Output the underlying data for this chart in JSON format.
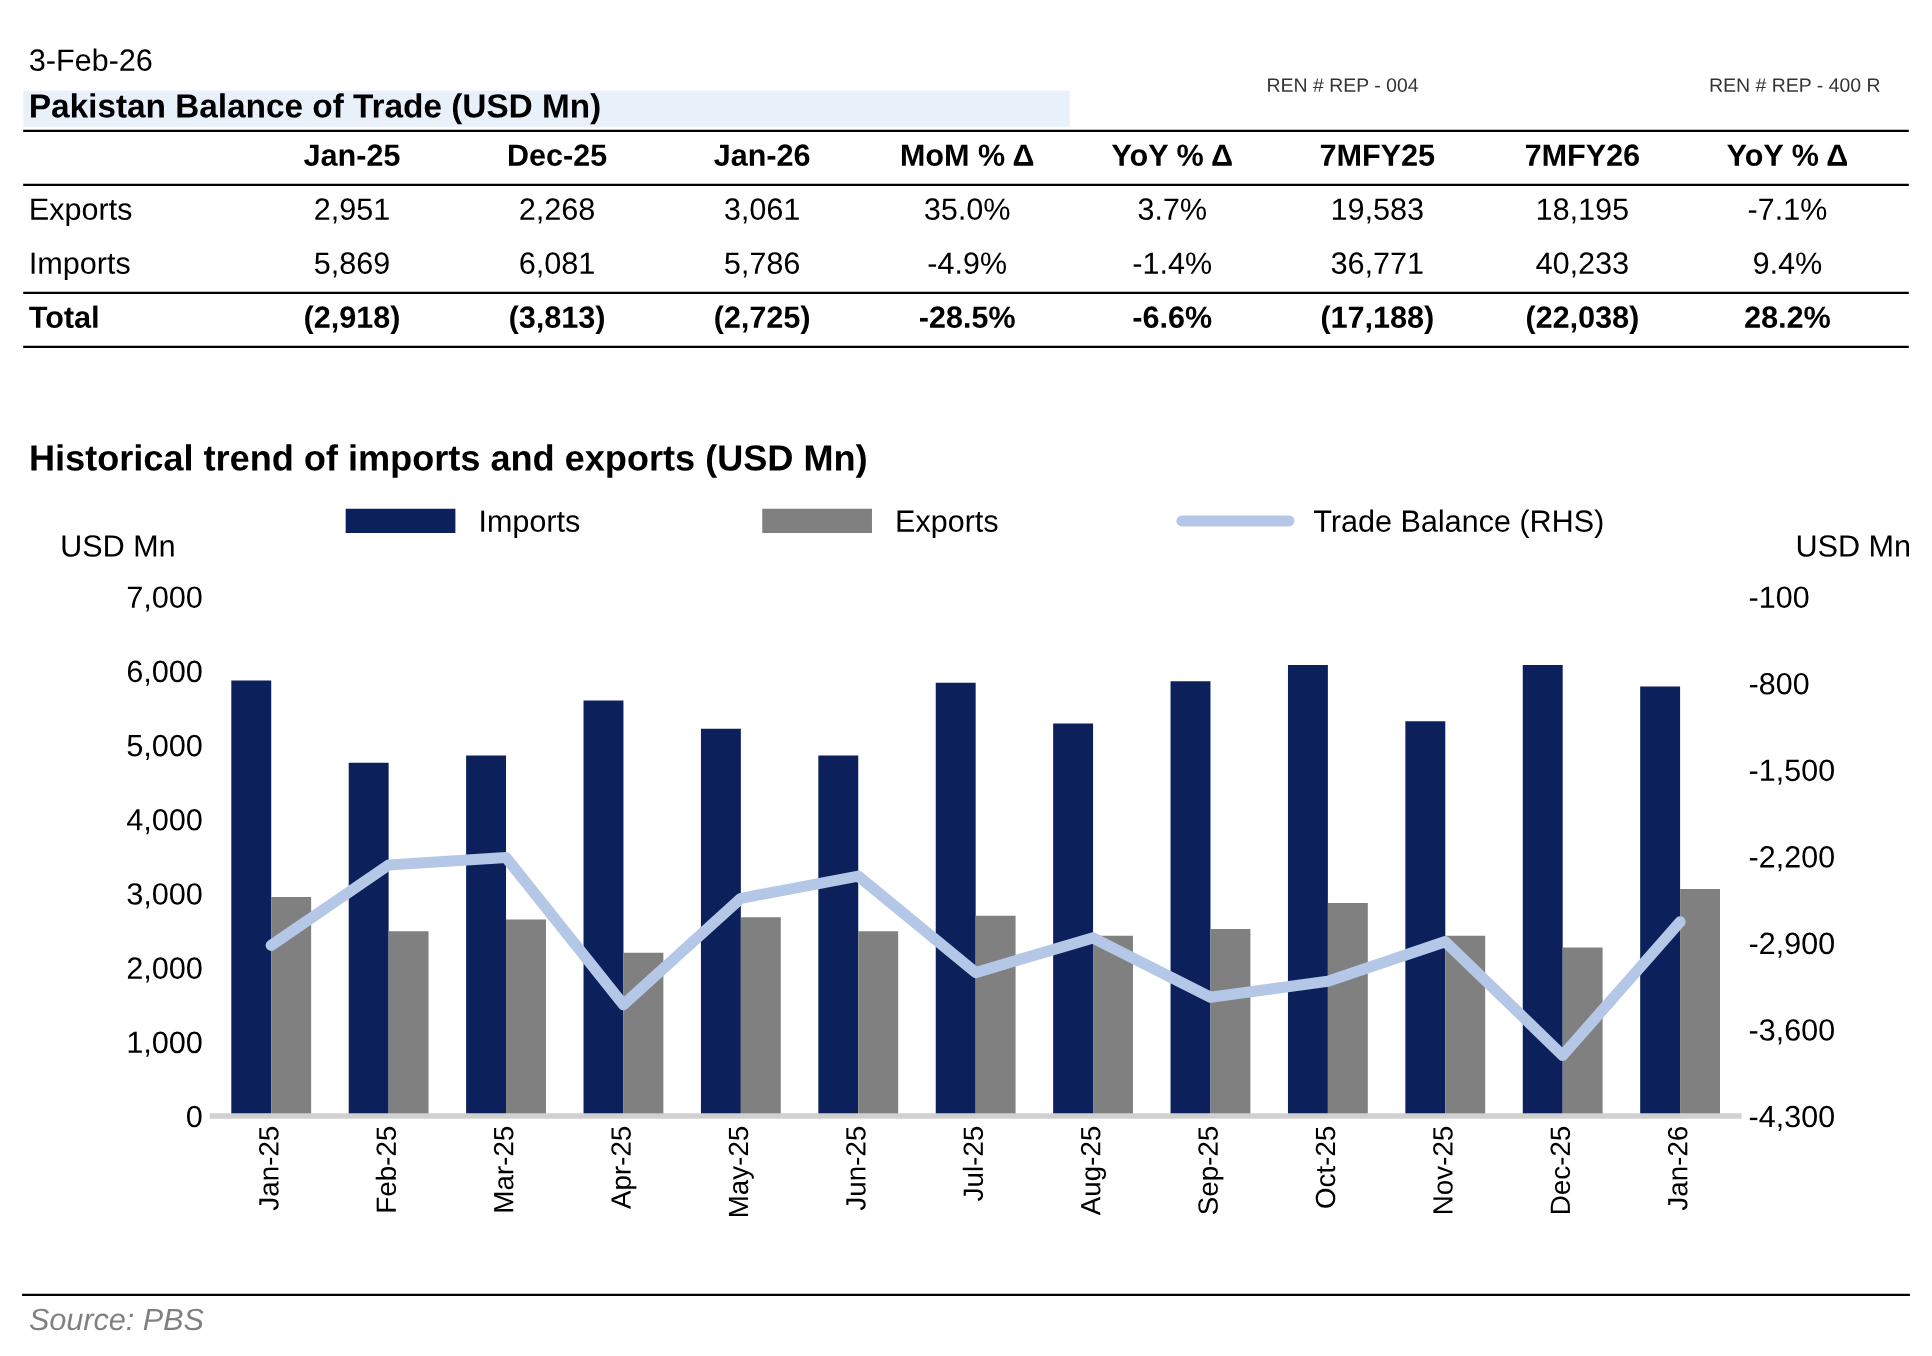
{
  "chart_data": [
    {
      "type": "other",
      "title": "Pakistan Balance of Trade (USD Mn)",
      "subtitle": "3-Feb-26",
      "categories": [
        "Jan-25",
        "Dec-25",
        "Jan-26",
        "MoM % Δ",
        "YoY % Δ",
        "7MFY25",
        "7MFY26",
        "YoY % Δ"
      ],
      "y_categories": [
        "Exports",
        "Imports",
        "Total"
      ],
      "cell_labels": [
        [
          "2,951",
          "2,268",
          "3,061",
          "35.0%",
          "3.7%",
          "19,583",
          "18,195",
          "-7.1%"
        ],
        [
          "5,869",
          "6,081",
          "5,786",
          "-4.9%",
          "-1.4%",
          "36,771",
          "40,233",
          "9.4%"
        ],
        [
          "(2,918)",
          "(3,813)",
          "(2,725)",
          "-28.5%",
          "-6.6%",
          "(17,188)",
          "(22,038)",
          "28.2%"
        ]
      ],
      "annotations": [
        "REN # REP - 004",
        "REN # REP - 400 R"
      ]
    },
    {
      "type": "bar",
      "title": "Historical trend of imports and exports (USD Mn)",
      "ylabel": "USD Mn",
      "y2label": "USD Mn",
      "categories": [
        "Jan-25",
        "Feb-25",
        "Mar-25",
        "Apr-25",
        "May-25",
        "Jun-25",
        "Jul-25",
        "Aug-25",
        "Sep-25",
        "Oct-25",
        "Nov-25",
        "Dec-25",
        "Jan-26"
      ],
      "series": [
        {
          "name": "Imports",
          "color": "#0c205c",
          "values": [
            5870,
            4760,
            4860,
            5600,
            5220,
            4860,
            5840,
            5290,
            5860,
            6080,
            5320,
            6080,
            5790
          ]
        },
        {
          "name": "Exports",
          "color": "#808080",
          "values": [
            2950,
            2490,
            2650,
            2200,
            2680,
            2490,
            2700,
            2430,
            2520,
            2870,
            2430,
            2270,
            3060
          ]
        },
        {
          "name": "Trade Balance (RHS)",
          "type": "line",
          "axis": "y2",
          "color": "#b4c7e7",
          "values": [
            -2920,
            -2270,
            -2210,
            -3400,
            -2540,
            -2360,
            -3140,
            -2860,
            -3340,
            -3210,
            -2890,
            -3810,
            -2730
          ]
        }
      ],
      "ylim": [
        0,
        7000
      ],
      "yticks": [
        {
          "value": 0,
          "label": "0"
        },
        {
          "value": 1000,
          "label": "1,000"
        },
        {
          "value": 2000,
          "label": "2,000"
        },
        {
          "value": 3000,
          "label": "3,000"
        },
        {
          "value": 4000,
          "label": "4,000"
        },
        {
          "value": 5000,
          "label": "5,000"
        },
        {
          "value": 6000,
          "label": "6,000"
        },
        {
          "value": 7000,
          "label": "7,000"
        }
      ],
      "y2lim": [
        -4300,
        -100
      ],
      "y2ticks": [
        {
          "value": -4300,
          "label": "-4,300"
        },
        {
          "value": -3600,
          "label": "-3,600"
        },
        {
          "value": -2900,
          "label": "-2,900"
        },
        {
          "value": -2200,
          "label": "-2,200"
        },
        {
          "value": -1500,
          "label": "-1,500"
        },
        -800,
        -100
      ],
      "legend": "top",
      "grid": false,
      "annotations": [
        "Source: PBS"
      ]
    }
  ]
}
